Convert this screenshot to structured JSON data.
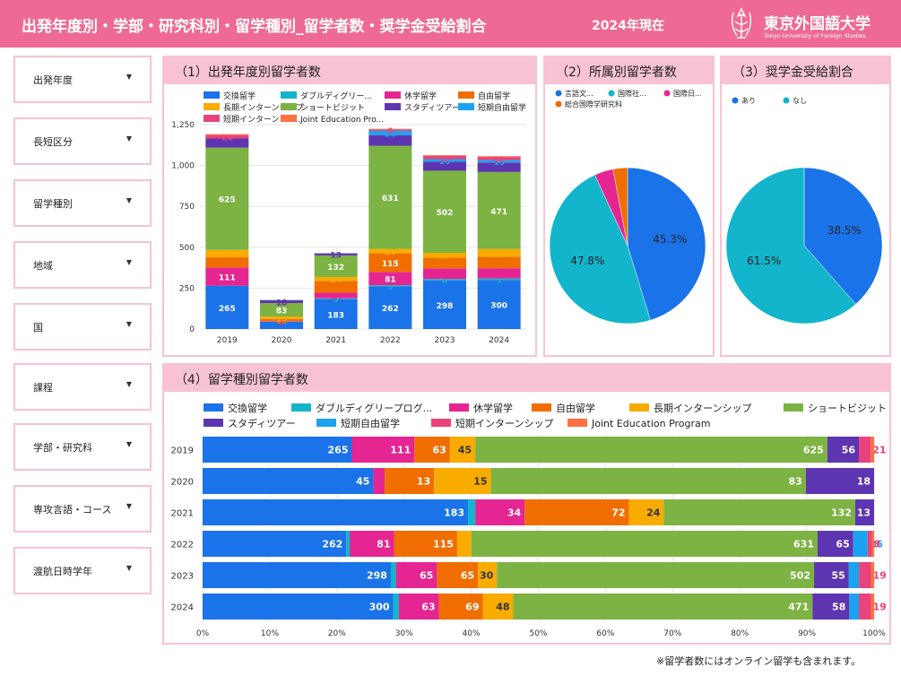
{
  "header": {
    "title": "出発年度別・学部・研究科別・留学種別_留学者数・奨学金受給割合",
    "current_year": "2024年現在",
    "logo_name": "東京外国語大学",
    "logo_en": "Tokyo University of Foreign Studies"
  },
  "filters": [
    {
      "label": "出発年度"
    },
    {
      "label": "長短区分"
    },
    {
      "label": "留学種別"
    },
    {
      "label": "地域"
    },
    {
      "label": "国"
    },
    {
      "label": "課程"
    },
    {
      "label": "学部・研究科"
    },
    {
      "label": "専攻言語・コース"
    },
    {
      "label": "渡航日時学年"
    }
  ],
  "panels": {
    "p1": {
      "title": "（1）出発年度別留学者数"
    },
    "p2": {
      "title": "（2）所属別留学者数"
    },
    "p3": {
      "title": "（3）奨学金受給割合"
    },
    "p4": {
      "title": "（4）留学種別留学者数"
    }
  },
  "note": "※留学者数にはオンライン留学も含まれます。",
  "colors": {
    "header": "#ee6a94",
    "panel_border": "#f7c3d3"
  },
  "chart_data": [
    {
      "id": "chart1",
      "type": "bar",
      "stacked": true,
      "title": "（1）出発年度別留学者数",
      "categories": [
        "2019",
        "2020",
        "2021",
        "2022",
        "2023",
        "2024"
      ],
      "ylim": [
        0,
        1250
      ],
      "yticks": [
        "0",
        "250",
        "500",
        "750",
        "1,000",
        "1,250"
      ],
      "legend": [
        "交換留学",
        "ダブルディグリー...",
        "休学留学",
        "自由留学",
        "長期インターンシップ",
        "ショートビジット",
        "スタディツアー",
        "短期自由留学",
        "短期インターンシッ...",
        "Joint Education Pro..."
      ],
      "series": [
        {
          "name": "交換留学",
          "color": "#1a73e8",
          "values": [
            265,
            45,
            183,
            262,
            298,
            300
          ],
          "labels": [
            "265",
            "45",
            "183",
            "262",
            "298",
            "300"
          ]
        },
        {
          "name": "ダブルディグリープログラム",
          "color": "#12b5cb",
          "values": [
            0,
            0,
            5,
            6,
            8,
            9
          ],
          "labels": [
            "",
            "",
            "5",
            "6",
            "8",
            "9"
          ]
        },
        {
          "name": "休学留学",
          "color": "#e52592",
          "values": [
            111,
            3,
            34,
            81,
            65,
            63
          ],
          "labels": [
            "111",
            "3",
            "34",
            "81",
            "65",
            "63"
          ]
        },
        {
          "name": "自由留学",
          "color": "#f06e00",
          "values": [
            63,
            13,
            72,
            115,
            65,
            69
          ],
          "labels": [
            "63",
            "13",
            "72",
            "115",
            "65",
            "69"
          ]
        },
        {
          "name": "長期インターンシップ",
          "color": "#f9ab00",
          "values": [
            45,
            15,
            24,
            26,
            30,
            48
          ],
          "labels": [
            "45",
            "15",
            "24",
            "26",
            "30",
            "48"
          ]
        },
        {
          "name": "ショートビジット",
          "color": "#7cb342",
          "values": [
            625,
            83,
            132,
            631,
            502,
            471
          ],
          "labels": [
            "625",
            "83",
            "132",
            "631",
            "502",
            "471"
          ]
        },
        {
          "name": "スタディツアー",
          "color": "#5e35b1",
          "values": [
            56,
            18,
            13,
            65,
            55,
            58
          ],
          "labels": [
            "56",
            "18",
            "13",
            "65",
            "55",
            "58"
          ]
        },
        {
          "name": "短期自由留学",
          "color": "#1aa3f0",
          "values": [
            0,
            0,
            0,
            26,
            16,
            15
          ],
          "labels": [
            "",
            "",
            "",
            "26",
            "16",
            "15"
          ]
        },
        {
          "name": "短期インターンシップ",
          "color": "#e8437a",
          "values": [
            21,
            0,
            0,
            8,
            19,
            19
          ],
          "labels": [
            "21",
            "",
            "",
            "8",
            "19",
            "19"
          ]
        },
        {
          "name": "Joint Education Program",
          "color": "#ff7043",
          "values": [
            6,
            0,
            0,
            4,
            5,
            5
          ],
          "labels": [
            "",
            "",
            "",
            "",
            "",
            ""
          ]
        }
      ]
    },
    {
      "id": "chart2",
      "type": "pie",
      "title": "（2）所属別留学者数",
      "legend": [
        "言語文...",
        "国際社...",
        "国際日...",
        "総合国際学研究科"
      ],
      "slices": [
        {
          "name": "言語文化学部",
          "value": 45.3,
          "color": "#1a73e8",
          "label": "45.3%"
        },
        {
          "name": "国際社会学部",
          "value": 47.8,
          "color": "#12b5cb",
          "label": "47.8%"
        },
        {
          "name": "国際日本学部",
          "value": 3.9,
          "color": "#e52592",
          "label": ""
        },
        {
          "name": "総合国際学研究科",
          "value": 3.0,
          "color": "#f06e00",
          "label": ""
        }
      ]
    },
    {
      "id": "chart3",
      "type": "pie",
      "title": "（3）奨学金受給割合",
      "legend": [
        "あり",
        "なし"
      ],
      "slices": [
        {
          "name": "あり",
          "value": 38.5,
          "color": "#1a73e8",
          "label": "38.5%"
        },
        {
          "name": "なし",
          "value": 61.5,
          "color": "#12b5cb",
          "label": "61.5%"
        }
      ]
    },
    {
      "id": "chart4",
      "type": "bar",
      "orientation": "horizontal",
      "stacked": "percent",
      "title": "（4）留学種別留学者数",
      "categories": [
        "2019",
        "2020",
        "2021",
        "2022",
        "2023",
        "2024"
      ],
      "xticks": [
        "0%",
        "10%",
        "20%",
        "30%",
        "40%",
        "50%",
        "60%",
        "70%",
        "80%",
        "90%",
        "100%"
      ],
      "legend": [
        "交換留学",
        "ダブルディグリープログ...",
        "休学留学",
        "自由留学",
        "長期インターンシップ",
        "ショートビジット",
        "スタディツアー",
        "短期自由留学",
        "短期インターンシップ",
        "Joint Education Program"
      ]
    }
  ]
}
